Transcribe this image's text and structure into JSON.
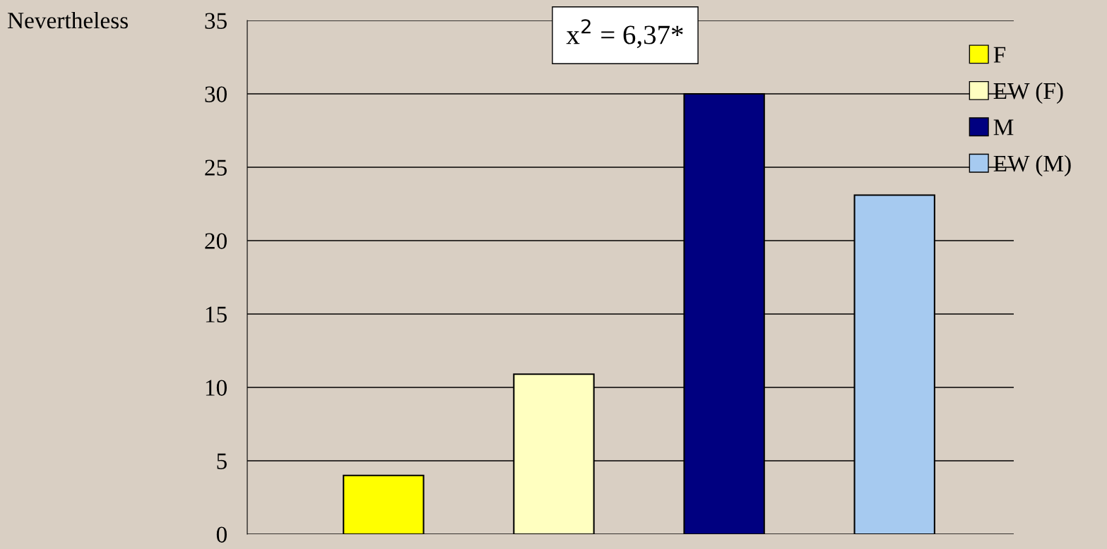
{
  "chart_data": {
    "type": "bar",
    "categories": [
      null,
      null,
      null,
      null
    ],
    "series": [
      {
        "name": "F",
        "color": "#ffff00",
        "values": [
          4,
          null,
          null,
          null
        ]
      },
      {
        "name": "EW (F)",
        "color": "#ffffc0",
        "values": [
          null,
          10.9,
          null,
          null
        ]
      },
      {
        "name": "M",
        "color": "#000080",
        "values": [
          null,
          null,
          30,
          null
        ]
      },
      {
        "name": "EW (M)",
        "color": "#a6caf0",
        "values": [
          null,
          null,
          null,
          23.1
        ]
      }
    ],
    "ylim": [
      0,
      35
    ],
    "yticks": [
      0,
      5,
      10,
      15,
      20,
      25,
      30,
      35
    ],
    "grid": "y",
    "legend": "right",
    "annotations": [
      "Nevertheless",
      "x$^{2}$ = 6,37*"
    ]
  }
}
